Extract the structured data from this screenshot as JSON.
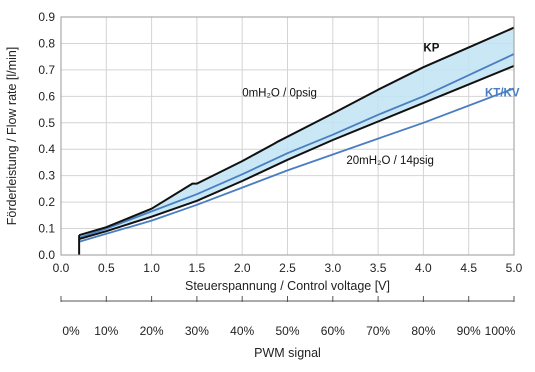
{
  "chart_data": {
    "type": "line",
    "xlabel": "Steuerspannung / Control voltage [V]",
    "ylabel": "Förderleistung / Flow rate [l/min]",
    "xlim": [
      0,
      5
    ],
    "ylim": [
      0,
      0.9
    ],
    "xticks": [
      "0.0",
      "0.5",
      "1.0",
      "1.5",
      "2.0",
      "2.5",
      "3.0",
      "3.5",
      "4.0",
      "4.5",
      "5.0"
    ],
    "yticks": [
      "0.0",
      "0.1",
      "0.2",
      "0.3",
      "0.4",
      "0.5",
      "0.6",
      "0.7",
      "0.8",
      "0.9"
    ],
    "grid": true,
    "series": [
      {
        "name": "KP",
        "color": "#111111",
        "x": [
          0.2,
          0.5,
          1.0,
          1.45,
          1.5,
          2.0,
          2.35,
          2.4,
          3.0,
          3.5,
          4.0,
          4.5,
          5.0
        ],
        "y": [
          0.075,
          0.105,
          0.175,
          0.27,
          0.27,
          0.355,
          0.42,
          0.43,
          0.535,
          0.625,
          0.71,
          0.785,
          0.86
        ]
      },
      {
        "name": "",
        "color": "#111111",
        "x": [
          0.2,
          0.5,
          1.0,
          1.5,
          2.0,
          2.5,
          3.0,
          3.5,
          4.0,
          4.5,
          5.0
        ],
        "y": [
          0.06,
          0.09,
          0.145,
          0.205,
          0.28,
          0.36,
          0.435,
          0.505,
          0.575,
          0.645,
          0.715
        ]
      },
      {
        "name": "KT/KV",
        "color": "#4a7ec2",
        "x": [
          0.2,
          0.5,
          1.0,
          1.5,
          2.0,
          2.5,
          3.0,
          3.5,
          4.0,
          4.5,
          5.0
        ],
        "y": [
          0.065,
          0.1,
          0.165,
          0.23,
          0.305,
          0.385,
          0.455,
          0.53,
          0.6,
          0.68,
          0.76
        ]
      },
      {
        "name": "",
        "color": "#4a7ec2",
        "x": [
          0.2,
          0.5,
          1.0,
          1.5,
          2.0,
          2.5,
          3.0,
          3.5,
          4.0,
          4.5,
          5.0
        ],
        "y": [
          0.05,
          0.08,
          0.13,
          0.19,
          0.255,
          0.32,
          0.38,
          0.44,
          0.5,
          0.565,
          0.63
        ]
      }
    ],
    "band": {
      "color": "#bfe3f3",
      "upper_series": 0,
      "lower_series": 1
    },
    "annotations": [
      {
        "id": "ann-kp",
        "text": "KP",
        "x": 4.0,
        "y": 0.77,
        "color": "#111111",
        "bold": true
      },
      {
        "id": "ann-ktkv",
        "text": "KT/KV",
        "x": 4.68,
        "y": 0.6,
        "color": "#4a7ec2",
        "bold": true
      },
      {
        "id": "ann-0mh2o",
        "text": "0mH₂O / 0psig",
        "x": 2.0,
        "y": 0.6,
        "color": "#111111",
        "bold": false
      },
      {
        "id": "ann-20mh2o",
        "text": "20mH₂O / 14psig",
        "x": 3.15,
        "y": 0.345,
        "color": "#111111",
        "bold": false
      }
    ],
    "secondary_axis": {
      "label": "PWM signal",
      "ticks": [
        "0%",
        "10%",
        "20%",
        "30%",
        "40%",
        "50%",
        "60%",
        "70%",
        "80%",
        "90%",
        "100%"
      ]
    }
  }
}
